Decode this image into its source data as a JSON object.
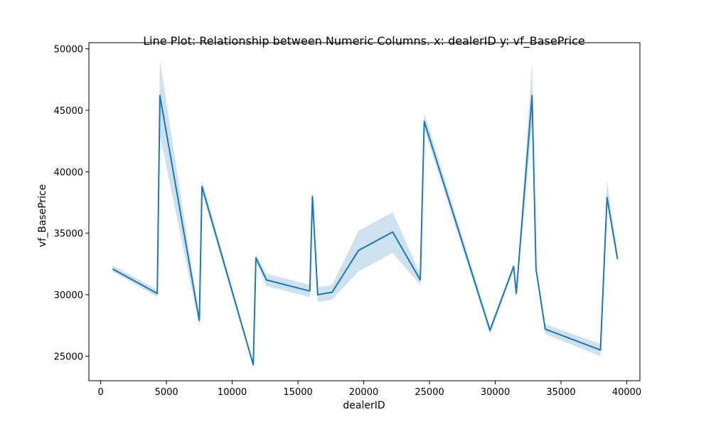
{
  "chart_data": {
    "type": "line",
    "title": "Line Plot: Relationship between Numeric Columns. x: dealerID y: vf_BasePrice",
    "xlabel": "dealerID",
    "ylabel": "vf_BasePrice",
    "xlim": [
      -900,
      41000
    ],
    "ylim": [
      23000,
      50500
    ],
    "xticks": [
      0,
      5000,
      10000,
      15000,
      20000,
      25000,
      30000,
      35000,
      40000
    ],
    "yticks": [
      25000,
      30000,
      35000,
      40000,
      45000,
      50000
    ],
    "grid": false,
    "colors": {
      "line": "#1f77b4",
      "band": "#1f77b4"
    },
    "series": [
      {
        "x": [
          900,
          4300,
          4500,
          7500,
          7700,
          11600,
          11800,
          12600,
          15900,
          16100,
          16500,
          17600,
          19600,
          22200,
          24300,
          24600,
          29600,
          31400,
          31600,
          32800,
          33100,
          33800,
          38000,
          38500,
          39300
        ],
        "y": [
          32100,
          30100,
          46200,
          27900,
          38800,
          24300,
          33000,
          31200,
          30300,
          38000,
          30000,
          30200,
          33600,
          35100,
          31200,
          44100,
          27100,
          32300,
          30100,
          46200,
          32100,
          27200,
          25500,
          37900,
          32900
        ],
        "lower": [
          31900,
          29800,
          43000,
          27400,
          38300,
          24100,
          32700,
          30700,
          29800,
          37500,
          29400,
          29600,
          31900,
          33400,
          30800,
          43500,
          26800,
          32000,
          29900,
          43800,
          31800,
          26800,
          25000,
          37400,
          32500
        ],
        "upper": [
          32400,
          30400,
          49100,
          28200,
          39300,
          24500,
          33300,
          31700,
          30800,
          38600,
          30600,
          30800,
          35200,
          36700,
          31700,
          44800,
          27400,
          32500,
          30300,
          48900,
          32400,
          27600,
          26000,
          39300,
          33300
        ]
      }
    ]
  }
}
